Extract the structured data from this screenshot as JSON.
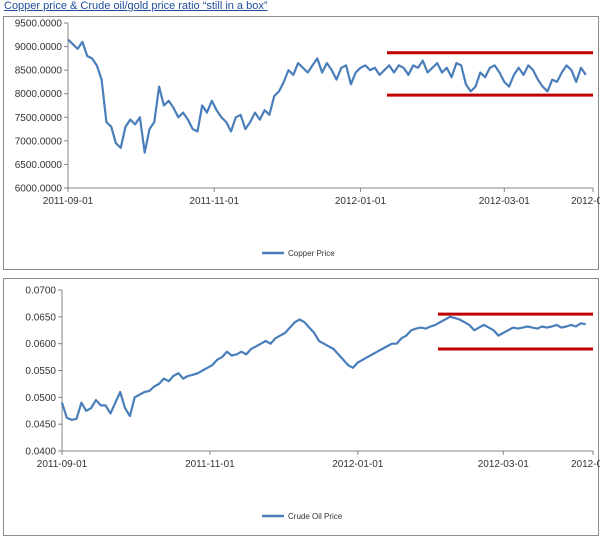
{
  "title": "Copper price & Crude oil/gold price ratio “still in a box”",
  "colors": {
    "series": "#4a7ebb",
    "box": "#c00000",
    "axis": "#868686",
    "grid": "#d9d9d9"
  },
  "chart_data": [
    {
      "type": "line",
      "y_tick_labels": [
        "9500.0000",
        "9000.0000",
        "8500.0000",
        "8000.0000",
        "7500.0000",
        "7000.0000",
        "6500.0000",
        "6000.0000"
      ],
      "x_tick_labels": [
        "2011-09-01",
        "2011-11-01",
        "2012-01-01",
        "2012-03-01",
        "2012-0"
      ],
      "ylim": [
        6000,
        9500
      ],
      "legend": "bottom",
      "grid": false,
      "series": [
        {
          "name": "Copper Price",
          "x": [
            "2011-09-01",
            "2011-09-03",
            "2011-09-05",
            "2011-09-07",
            "2011-09-09",
            "2011-09-11",
            "2011-09-13",
            "2011-09-15",
            "2011-09-17",
            "2011-09-19",
            "2011-09-21",
            "2011-09-23",
            "2011-09-25",
            "2011-09-27",
            "2011-09-29",
            "2011-10-01",
            "2011-10-03",
            "2011-10-05",
            "2011-10-07",
            "2011-10-09",
            "2011-10-11",
            "2011-10-13",
            "2011-10-15",
            "2011-10-17",
            "2011-10-19",
            "2011-10-21",
            "2011-10-23",
            "2011-10-25",
            "2011-10-27",
            "2011-10-29",
            "2011-10-31",
            "2011-11-02",
            "2011-11-04",
            "2011-11-06",
            "2011-11-08",
            "2011-11-10",
            "2011-11-12",
            "2011-11-14",
            "2011-11-16",
            "2011-11-18",
            "2011-11-20",
            "2011-11-22",
            "2011-11-24",
            "2011-11-26",
            "2011-11-28",
            "2011-11-30",
            "2011-12-02",
            "2011-12-04",
            "2011-12-06",
            "2011-12-08",
            "2011-12-10",
            "2011-12-12",
            "2011-12-14",
            "2011-12-16",
            "2011-12-18",
            "2011-12-20",
            "2011-12-22",
            "2011-12-24",
            "2011-12-26",
            "2011-12-28",
            "2011-12-30",
            "2012-01-01",
            "2012-01-03",
            "2012-01-05",
            "2012-01-07",
            "2012-01-09",
            "2012-01-11",
            "2012-01-13",
            "2012-01-15",
            "2012-01-17",
            "2012-01-19",
            "2012-01-21",
            "2012-01-23",
            "2012-01-25",
            "2012-01-27",
            "2012-01-29",
            "2012-01-31",
            "2012-02-02",
            "2012-02-04",
            "2012-02-06",
            "2012-02-08",
            "2012-02-10",
            "2012-02-12",
            "2012-02-14",
            "2012-02-16",
            "2012-02-18",
            "2012-02-20",
            "2012-02-22",
            "2012-02-24",
            "2012-02-26",
            "2012-02-28",
            "2012-03-01",
            "2012-03-03",
            "2012-03-05",
            "2012-03-07",
            "2012-03-09",
            "2012-03-11",
            "2012-03-13",
            "2012-03-15",
            "2012-03-17",
            "2012-03-19",
            "2012-03-21",
            "2012-03-23",
            "2012-03-25",
            "2012-03-27",
            "2012-03-29",
            "2012-03-31",
            "2012-04-02",
            "2012-04-04"
          ],
          "values": [
            9150,
            9050,
            8950,
            9100,
            8800,
            8750,
            8600,
            8300,
            7400,
            7300,
            6950,
            6850,
            7300,
            7450,
            7350,
            7500,
            6750,
            7250,
            7400,
            8150,
            7750,
            7850,
            7700,
            7500,
            7600,
            7450,
            7250,
            7200,
            7750,
            7600,
            7850,
            7650,
            7500,
            7400,
            7200,
            7500,
            7550,
            7250,
            7400,
            7600,
            7450,
            7650,
            7550,
            7950,
            8050,
            8250,
            8500,
            8400,
            8650,
            8550,
            8450,
            8600,
            8750,
            8450,
            8650,
            8500,
            8300,
            8550,
            8600,
            8200,
            8450,
            8550,
            8600,
            8500,
            8550,
            8400,
            8500,
            8600,
            8450,
            8600,
            8550,
            8400,
            8600,
            8550,
            8700,
            8450,
            8550,
            8650,
            8450,
            8550,
            8350,
            8650,
            8600,
            8200,
            8050,
            8150,
            8450,
            8350,
            8550,
            8600,
            8450,
            8250,
            8150,
            8400,
            8550,
            8400,
            8600,
            8500,
            8300,
            8150,
            8050,
            8300,
            8250,
            8450,
            8600,
            8500,
            8250,
            8550,
            8400
          ],
          "box_lines": [
            8870,
            7970
          ]
        }
      ]
    },
    {
      "type": "line",
      "y_tick_labels": [
        "0.0700",
        "0.0650",
        "0.0600",
        "0.0550",
        "0.0500",
        "0.0450",
        "0.0400"
      ],
      "x_tick_labels": [
        "2011-09-01",
        "2011-11-01",
        "2012-01-01",
        "2012-03-01",
        "2012-0"
      ],
      "ylim": [
        0.04,
        0.07
      ],
      "legend": "bottom",
      "grid": false,
      "series": [
        {
          "name": "Crude Oil Price",
          "x": [
            "2011-09-01",
            "2011-09-03",
            "2011-09-05",
            "2011-09-07",
            "2011-09-09",
            "2011-09-11",
            "2011-09-13",
            "2011-09-15",
            "2011-09-17",
            "2011-09-19",
            "2011-09-21",
            "2011-09-23",
            "2011-09-25",
            "2011-09-27",
            "2011-09-29",
            "2011-10-01",
            "2011-10-03",
            "2011-10-05",
            "2011-10-07",
            "2011-10-09",
            "2011-10-11",
            "2011-10-13",
            "2011-10-15",
            "2011-10-17",
            "2011-10-19",
            "2011-10-21",
            "2011-10-23",
            "2011-10-25",
            "2011-10-27",
            "2011-10-29",
            "2011-10-31",
            "2011-11-02",
            "2011-11-04",
            "2011-11-06",
            "2011-11-08",
            "2011-11-10",
            "2011-11-12",
            "2011-11-14",
            "2011-11-16",
            "2011-11-18",
            "2011-11-20",
            "2011-11-22",
            "2011-11-24",
            "2011-11-26",
            "2011-11-28",
            "2011-11-30",
            "2011-12-02",
            "2011-12-04",
            "2011-12-06",
            "2011-12-08",
            "2011-12-10",
            "2011-12-12",
            "2011-12-14",
            "2011-12-16",
            "2011-12-18",
            "2011-12-20",
            "2011-12-22",
            "2011-12-24",
            "2011-12-26",
            "2011-12-28",
            "2011-12-30",
            "2012-01-01",
            "2012-01-03",
            "2012-01-05",
            "2012-01-07",
            "2012-01-09",
            "2012-01-11",
            "2012-01-13",
            "2012-01-15",
            "2012-01-17",
            "2012-01-19",
            "2012-01-21",
            "2012-01-23",
            "2012-01-25",
            "2012-01-27",
            "2012-01-29",
            "2012-01-31",
            "2012-02-02",
            "2012-02-04",
            "2012-02-06",
            "2012-02-08",
            "2012-02-10",
            "2012-02-12",
            "2012-02-14",
            "2012-02-16",
            "2012-02-18",
            "2012-02-20",
            "2012-02-22",
            "2012-02-24",
            "2012-02-26",
            "2012-02-28",
            "2012-03-01",
            "2012-03-03",
            "2012-03-05",
            "2012-03-07",
            "2012-03-09",
            "2012-03-11",
            "2012-03-13",
            "2012-03-15",
            "2012-03-17",
            "2012-03-19",
            "2012-03-21",
            "2012-03-23",
            "2012-03-25",
            "2012-03-27",
            "2012-03-29",
            "2012-03-31",
            "2012-04-02",
            "2012-04-04"
          ],
          "values": [
            0.049,
            0.0462,
            0.0458,
            0.046,
            0.049,
            0.0475,
            0.048,
            0.0495,
            0.0485,
            0.0485,
            0.047,
            0.049,
            0.051,
            0.048,
            0.0465,
            0.05,
            0.0505,
            0.051,
            0.0512,
            0.052,
            0.0525,
            0.0535,
            0.053,
            0.054,
            0.0545,
            0.0535,
            0.054,
            0.0542,
            0.0545,
            0.055,
            0.0555,
            0.056,
            0.057,
            0.0575,
            0.0585,
            0.0578,
            0.058,
            0.0585,
            0.058,
            0.059,
            0.0595,
            0.06,
            0.0605,
            0.06,
            0.061,
            0.0615,
            0.062,
            0.063,
            0.064,
            0.0645,
            0.064,
            0.063,
            0.062,
            0.0605,
            0.06,
            0.0595,
            0.059,
            0.058,
            0.057,
            0.056,
            0.0555,
            0.0565,
            0.057,
            0.0575,
            0.058,
            0.0585,
            0.059,
            0.0595,
            0.06,
            0.06,
            0.061,
            0.0615,
            0.0625,
            0.0628,
            0.063,
            0.0628,
            0.0632,
            0.0635,
            0.064,
            0.0645,
            0.065,
            0.0648,
            0.0645,
            0.064,
            0.0635,
            0.0625,
            0.063,
            0.0635,
            0.063,
            0.0625,
            0.0615,
            0.062,
            0.0625,
            0.063,
            0.0628,
            0.063,
            0.0632,
            0.063,
            0.0628,
            0.0632,
            0.063,
            0.0632,
            0.0635,
            0.063,
            0.0632,
            0.0635,
            0.0632,
            0.0638,
            0.0636
          ],
          "box_lines": [
            0.0655,
            0.059
          ]
        }
      ]
    }
  ]
}
